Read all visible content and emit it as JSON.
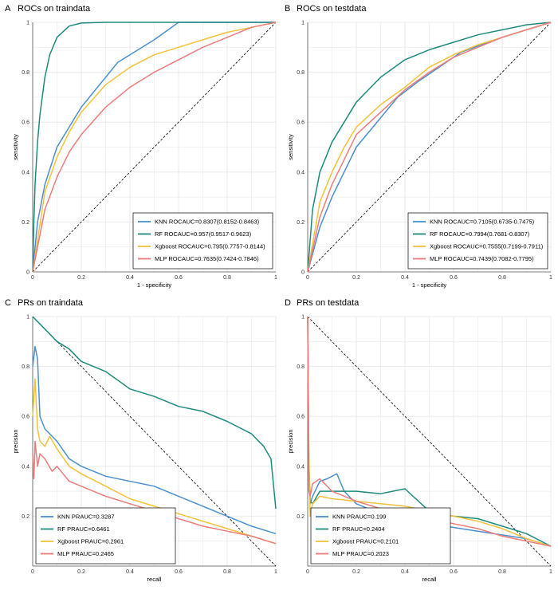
{
  "figure": {
    "panel_letters": [
      "A",
      "B",
      "C",
      "D"
    ]
  },
  "colors": {
    "knn": "#4a8fcf",
    "rf": "#1e8a7e",
    "xgb": "#f2c23a",
    "mlp": "#ec7c7c",
    "grid": "#e5e5e5",
    "diag": "#000000"
  },
  "chart_data": [
    {
      "type": "line",
      "panel": "A",
      "title": "ROCs on traindata",
      "xlabel": "1 - specificity",
      "ylabel": "sensitivity",
      "xlim": [
        0,
        1
      ],
      "ylim": [
        0,
        1
      ],
      "xticks": [
        "0",
        "0.2",
        "0.4",
        "0.6",
        "0.8",
        "1"
      ],
      "yticks": [
        "0",
        "0.2",
        "0.4",
        "0.6",
        "0.8",
        "1"
      ],
      "diagonal": "up",
      "legend_position": "bottom-right",
      "series": [
        {
          "name": "KNN ROCAUC=0.8307(0.8152-0.8463)",
          "color_key": "knn",
          "x": [
            0,
            0.02,
            0.05,
            0.1,
            0.2,
            0.35,
            0.5,
            0.6,
            0.8,
            1
          ],
          "y": [
            0,
            0.2,
            0.35,
            0.5,
            0.66,
            0.84,
            0.93,
            1,
            1,
            1
          ]
        },
        {
          "name": "RF ROCAUC=0.957(0.9517-0.9623)",
          "color_key": "rf",
          "x": [
            0,
            0.005,
            0.01,
            0.02,
            0.03,
            0.05,
            0.07,
            0.1,
            0.15,
            0.2,
            0.3,
            0.5,
            1
          ],
          "y": [
            0,
            0.2,
            0.35,
            0.52,
            0.63,
            0.78,
            0.87,
            0.94,
            0.985,
            0.997,
            1,
            1,
            1
          ]
        },
        {
          "name": "Xgboost ROCAUC=0.795(0.7757-0.8144)",
          "color_key": "xgb",
          "x": [
            0,
            0.05,
            0.1,
            0.15,
            0.2,
            0.3,
            0.4,
            0.5,
            0.6,
            0.7,
            0.8,
            0.9,
            1
          ],
          "y": [
            0,
            0.32,
            0.46,
            0.56,
            0.64,
            0.75,
            0.82,
            0.87,
            0.9,
            0.93,
            0.96,
            0.98,
            1
          ]
        },
        {
          "name": "MLP ROCAUC=0.7635(0.7424-0.7846)",
          "color_key": "mlp",
          "x": [
            0,
            0.05,
            0.1,
            0.15,
            0.2,
            0.3,
            0.4,
            0.5,
            0.6,
            0.7,
            0.8,
            0.9,
            1
          ],
          "y": [
            0,
            0.25,
            0.38,
            0.48,
            0.55,
            0.66,
            0.74,
            0.8,
            0.85,
            0.9,
            0.94,
            0.98,
            1
          ]
        }
      ]
    },
    {
      "type": "line",
      "panel": "B",
      "title": "ROCs on testdata",
      "xlabel": "1 - specificity",
      "ylabel": "sensitivity",
      "xlim": [
        0,
        1
      ],
      "ylim": [
        0,
        1
      ],
      "xticks": [
        "0",
        "0.2",
        "0.4",
        "0.6",
        "0.8",
        "1"
      ],
      "yticks": [
        "0",
        "0.2",
        "0.4",
        "0.6",
        "0.8",
        "1"
      ],
      "diagonal": "up",
      "legend_position": "bottom-right",
      "series": [
        {
          "name": "KNN ROCAUC=0.7105(0.6735-0.7475)",
          "color_key": "knn",
          "x": [
            0,
            0.05,
            0.1,
            0.2,
            0.37,
            0.45,
            0.63,
            0.8,
            1
          ],
          "y": [
            0,
            0.18,
            0.3,
            0.5,
            0.7,
            0.76,
            0.88,
            0.94,
            1
          ]
        },
        {
          "name": "RF ROCAUC=0.7994(0.7681-0.8307)",
          "color_key": "rf",
          "x": [
            0,
            0.02,
            0.05,
            0.1,
            0.15,
            0.2,
            0.3,
            0.4,
            0.5,
            0.6,
            0.7,
            0.8,
            0.9,
            1
          ],
          "y": [
            0,
            0.25,
            0.4,
            0.52,
            0.6,
            0.68,
            0.78,
            0.85,
            0.89,
            0.92,
            0.95,
            0.97,
            0.99,
            1
          ]
        },
        {
          "name": "Xgboost ROCAUC=0.7555(0.7199-0.7911)",
          "color_key": "xgb",
          "x": [
            0,
            0.05,
            0.1,
            0.15,
            0.2,
            0.3,
            0.4,
            0.5,
            0.6,
            0.7,
            0.8,
            0.9,
            1
          ],
          "y": [
            0,
            0.28,
            0.4,
            0.5,
            0.58,
            0.67,
            0.74,
            0.82,
            0.87,
            0.91,
            0.94,
            0.97,
            1
          ]
        },
        {
          "name": "MLP ROCAUC=0.7439(0.7082-0.7795)",
          "color_key": "mlp",
          "x": [
            0,
            0.05,
            0.1,
            0.15,
            0.2,
            0.3,
            0.4,
            0.5,
            0.6,
            0.7,
            0.8,
            0.9,
            1
          ],
          "y": [
            0,
            0.22,
            0.35,
            0.45,
            0.55,
            0.64,
            0.73,
            0.8,
            0.86,
            0.9,
            0.94,
            0.97,
            1
          ]
        }
      ]
    },
    {
      "type": "line",
      "panel": "C",
      "title": "PRs on traindata",
      "xlabel": "recall",
      "ylabel": "precision",
      "xlim": [
        0,
        1
      ],
      "ylim": [
        0,
        1
      ],
      "xticks": [
        "0",
        "0.2",
        "0.4",
        "0.6",
        "0.8",
        "1"
      ],
      "yticks": [
        "0.2",
        "0.4",
        "0.6",
        "0.8",
        "1"
      ],
      "diagonal": "down",
      "legend_position": "bottom-left",
      "series": [
        {
          "name": "KNN PRAUC=0.3287",
          "color_key": "knn",
          "x": [
            0,
            0.01,
            0.02,
            0.03,
            0.05,
            0.1,
            0.15,
            0.2,
            0.3,
            0.5,
            0.6,
            0.7,
            0.8,
            0.9,
            1
          ],
          "y": [
            0.8,
            0.88,
            0.83,
            0.6,
            0.55,
            0.5,
            0.43,
            0.4,
            0.36,
            0.32,
            0.28,
            0.24,
            0.2,
            0.16,
            0.13
          ]
        },
        {
          "name": "RF PRAUC=0.6461",
          "color_key": "rf",
          "x": [
            0,
            0.02,
            0.05,
            0.1,
            0.15,
            0.2,
            0.3,
            0.4,
            0.5,
            0.6,
            0.7,
            0.8,
            0.9,
            0.95,
            0.98,
            1
          ],
          "y": [
            1,
            0.98,
            0.95,
            0.9,
            0.87,
            0.82,
            0.78,
            0.71,
            0.68,
            0.64,
            0.62,
            0.58,
            0.53,
            0.48,
            0.43,
            0.23
          ]
        },
        {
          "name": "Xgboost PRAUC=0.2961",
          "color_key": "xgb",
          "x": [
            0,
            0.01,
            0.02,
            0.03,
            0.05,
            0.07,
            0.1,
            0.15,
            0.2,
            0.3,
            0.4,
            0.5,
            0.6,
            0.7,
            0.8,
            0.9,
            1
          ],
          "y": [
            0.6,
            0.75,
            0.55,
            0.5,
            0.48,
            0.52,
            0.47,
            0.4,
            0.37,
            0.32,
            0.27,
            0.24,
            0.21,
            0.18,
            0.15,
            0.12,
            0.09
          ]
        },
        {
          "name": "MLP PRAUC=0.2465",
          "color_key": "mlp",
          "x": [
            0,
            0.005,
            0.01,
            0.02,
            0.03,
            0.05,
            0.08,
            0.1,
            0.15,
            0.2,
            0.3,
            0.4,
            0.5,
            0.6,
            0.7,
            0.8,
            0.9,
            1
          ],
          "y": [
            0.45,
            0.35,
            0.5,
            0.4,
            0.45,
            0.43,
            0.38,
            0.4,
            0.34,
            0.32,
            0.28,
            0.25,
            0.22,
            0.19,
            0.16,
            0.14,
            0.12,
            0.09
          ]
        }
      ]
    },
    {
      "type": "line",
      "panel": "D",
      "title": "PRs on testdata",
      "xlabel": "recall",
      "ylabel": "precision",
      "xlim": [
        0,
        1
      ],
      "ylim": [
        0,
        1
      ],
      "xticks": [
        "0",
        "0.2",
        "0.4",
        "0.6",
        "0.8",
        "1"
      ],
      "yticks": [
        "0.2",
        "0.4",
        "0.6",
        "0.8",
        "1"
      ],
      "diagonal": "down",
      "legend_position": "bottom-left",
      "series": [
        {
          "name": "KNN PRAUC=0.199",
          "color_key": "knn",
          "x": [
            0,
            0.005,
            0.01,
            0.02,
            0.05,
            0.08,
            0.12,
            0.15,
            0.2,
            0.3,
            0.5,
            0.7,
            0.9,
            1
          ],
          "y": [
            1,
            0.4,
            0.25,
            0.28,
            0.34,
            0.35,
            0.37,
            0.3,
            0.25,
            0.21,
            0.17,
            0.14,
            0.11,
            0.08
          ]
        },
        {
          "name": "RF PRAUC=0.2404",
          "color_key": "rf",
          "x": [
            0,
            0.005,
            0.01,
            0.02,
            0.05,
            0.1,
            0.2,
            0.3,
            0.4,
            0.5,
            0.6,
            0.7,
            0.8,
            0.9,
            1
          ],
          "y": [
            1,
            0.4,
            0.26,
            0.25,
            0.3,
            0.3,
            0.3,
            0.29,
            0.31,
            0.22,
            0.2,
            0.19,
            0.16,
            0.13,
            0.08
          ]
        },
        {
          "name": "Xgboost PRAUC=0.2101",
          "color_key": "xgb",
          "x": [
            0,
            0.005,
            0.01,
            0.02,
            0.05,
            0.1,
            0.2,
            0.3,
            0.4,
            0.5,
            0.6,
            0.7,
            0.8,
            0.9,
            1
          ],
          "y": [
            1,
            0.45,
            0.2,
            0.25,
            0.28,
            0.27,
            0.26,
            0.25,
            0.24,
            0.22,
            0.2,
            0.18,
            0.15,
            0.11,
            0.08
          ]
        },
        {
          "name": "MLP PRAUC=0.2023",
          "color_key": "mlp",
          "x": [
            0,
            0.005,
            0.01,
            0.02,
            0.05,
            0.08,
            0.1,
            0.2,
            0.3,
            0.4,
            0.5,
            0.6,
            0.7,
            0.8,
            0.9,
            1
          ],
          "y": [
            1,
            0.3,
            0.28,
            0.33,
            0.35,
            0.32,
            0.3,
            0.26,
            0.23,
            0.21,
            0.19,
            0.17,
            0.15,
            0.12,
            0.1,
            0.08
          ]
        }
      ]
    }
  ]
}
